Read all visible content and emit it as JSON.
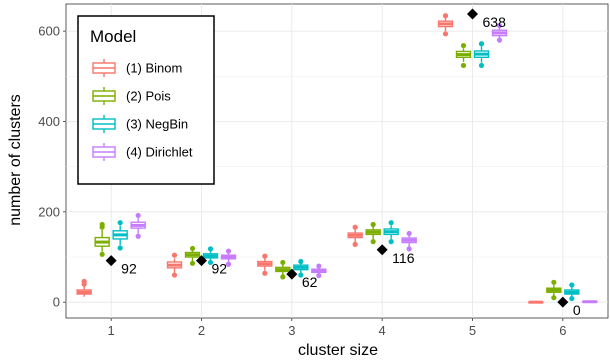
{
  "chart_data": {
    "type": "boxplot",
    "xlabel": "cluster size",
    "ylabel": "number of clusters",
    "categories": [
      "1",
      "2",
      "3",
      "4",
      "5",
      "6"
    ],
    "ylim": [
      -35,
      660
    ],
    "yticks": [
      0,
      200,
      400,
      600
    ],
    "grid": true,
    "legend": {
      "title": "Model",
      "placement": "top-left"
    },
    "series": [
      {
        "name": "(1) Binom",
        "color": "#F8766D",
        "boxes": [
          {
            "min": 12,
            "q1": 18,
            "median": 22,
            "q3": 27,
            "max": 35,
            "outliers": [
              40,
              46
            ]
          },
          {
            "min": 65,
            "q1": 76,
            "median": 82,
            "q3": 89,
            "max": 97,
            "outliers": [
              60,
              104
            ]
          },
          {
            "min": 70,
            "q1": 80,
            "median": 85,
            "q3": 90,
            "max": 97,
            "outliers": [
              64,
              102
            ]
          },
          {
            "min": 133,
            "q1": 143,
            "median": 148,
            "q3": 153,
            "max": 161,
            "outliers": [
              128,
              166
            ]
          },
          {
            "min": 600,
            "q1": 610,
            "median": 616,
            "q3": 622,
            "max": 630,
            "outliers": [
              594,
              634
            ]
          },
          {
            "min": 0,
            "q1": 0,
            "median": 0,
            "q3": 0,
            "max": 0,
            "outliers": []
          }
        ]
      },
      {
        "name": "(2) Pois",
        "color": "#7CAE00",
        "boxes": [
          {
            "min": 112,
            "q1": 124,
            "median": 133,
            "q3": 143,
            "max": 160,
            "outliers": [
              106,
              166,
              172
            ]
          },
          {
            "min": 90,
            "q1": 100,
            "median": 105,
            "q3": 110,
            "max": 116,
            "outliers": [
              86,
              119
            ]
          },
          {
            "min": 60,
            "q1": 68,
            "median": 72,
            "q3": 77,
            "max": 83,
            "outliers": [
              56,
              88
            ]
          },
          {
            "min": 140,
            "q1": 150,
            "median": 155,
            "q3": 160,
            "max": 167,
            "outliers": [
              134,
              172
            ]
          },
          {
            "min": 532,
            "q1": 542,
            "median": 548,
            "q3": 555,
            "max": 562,
            "outliers": [
              524,
              568
            ]
          },
          {
            "min": 14,
            "q1": 22,
            "median": 27,
            "q3": 31,
            "max": 38,
            "outliers": [
              10,
              44
            ]
          }
        ]
      },
      {
        "name": "(3) NegBin",
        "color": "#00BFC4",
        "boxes": [
          {
            "min": 126,
            "q1": 140,
            "median": 149,
            "q3": 158,
            "max": 170,
            "outliers": [
              120,
              176
            ]
          },
          {
            "min": 92,
            "q1": 98,
            "median": 102,
            "q3": 107,
            "max": 113,
            "outliers": [
              88,
              118
            ]
          },
          {
            "min": 64,
            "q1": 72,
            "median": 77,
            "q3": 82,
            "max": 87,
            "outliers": [
              60,
              90
            ]
          },
          {
            "min": 140,
            "q1": 150,
            "median": 156,
            "q3": 162,
            "max": 170,
            "outliers": [
              134,
              176
            ]
          },
          {
            "min": 530,
            "q1": 542,
            "median": 549,
            "q3": 556,
            "max": 566,
            "outliers": [
              524,
              572
            ]
          },
          {
            "min": 12,
            "q1": 18,
            "median": 22,
            "q3": 27,
            "max": 32,
            "outliers": [
              8,
              38
            ]
          }
        ]
      },
      {
        "name": "(4) Dirichlet",
        "color": "#C77CFF",
        "boxes": [
          {
            "min": 152,
            "q1": 164,
            "median": 170,
            "q3": 177,
            "max": 186,
            "outliers": [
              146,
              192
            ]
          },
          {
            "min": 88,
            "q1": 96,
            "median": 100,
            "q3": 104,
            "max": 110,
            "outliers": [
              84,
              113
            ]
          },
          {
            "min": 62,
            "q1": 66,
            "median": 70,
            "q3": 73,
            "max": 77,
            "outliers": [
              59,
              80
            ]
          },
          {
            "min": 123,
            "q1": 132,
            "median": 137,
            "q3": 142,
            "max": 148,
            "outliers": [
              118,
              152
            ]
          },
          {
            "min": 584,
            "q1": 590,
            "median": 596,
            "q3": 602,
            "max": 608,
            "outliers": [
              580,
              612
            ]
          },
          {
            "min": 0,
            "q1": 0,
            "median": 1,
            "q3": 2,
            "max": 4,
            "outliers": []
          }
        ]
      }
    ],
    "observed": {
      "values": [
        92,
        92,
        62,
        116,
        638,
        0
      ],
      "labels": [
        "92",
        "92",
        "62",
        "116",
        "638",
        "0"
      ],
      "color": "#000000"
    }
  }
}
